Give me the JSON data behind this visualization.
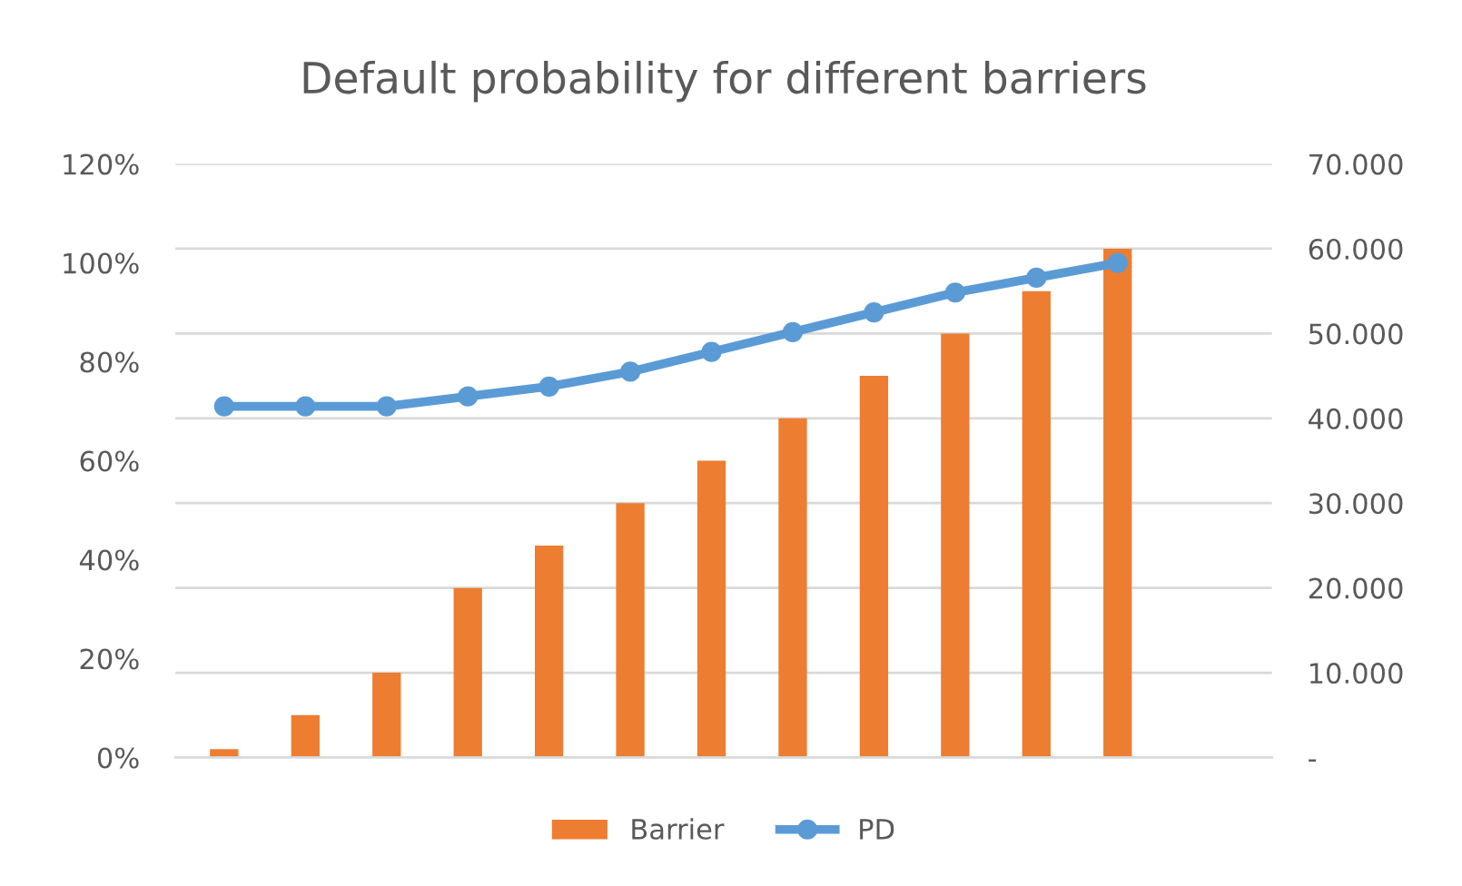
{
  "chart_data": {
    "type": "bar",
    "title": "Default probability for different barriers",
    "categories": [
      null,
      null,
      null,
      null,
      null,
      null,
      null,
      null,
      null,
      null,
      null,
      null
    ],
    "series": [
      {
        "name": "Barrier",
        "axis": "y2",
        "color": "#ed7d31",
        "values": [
          1000,
          5000,
          10000,
          20000,
          25000,
          30000,
          35000,
          40000,
          45000,
          50000,
          55000,
          60000
        ]
      },
      {
        "name": "PD",
        "type": "line",
        "axis": "y",
        "color": "#5b9bd5",
        "values": [
          71,
          71,
          71,
          73,
          75,
          78,
          82,
          86,
          90,
          94,
          97,
          100
        ]
      }
    ],
    "ylim": [
      0,
      120
    ],
    "yticks": [
      {
        "value": 0,
        "label": "0%"
      },
      {
        "value": 20,
        "label": "20%"
      },
      {
        "value": 40,
        "label": "40%"
      },
      {
        "value": 60,
        "label": "60%"
      },
      {
        "value": 80,
        "label": "80%"
      },
      {
        "value": 100,
        "label": "100%"
      },
      {
        "value": 120,
        "label": "120%"
      }
    ],
    "y2lim": [
      0,
      70000
    ],
    "y2ticks": [
      {
        "value": 0,
        "label": "-"
      },
      {
        "value": 10000,
        "label": "10.000"
      },
      {
        "value": 20000,
        "label": "20.000"
      },
      {
        "value": 30000,
        "label": "30.000"
      },
      {
        "value": 40000,
        "label": "40.000"
      },
      {
        "value": 50000,
        "label": "50.000"
      },
      {
        "value": 60000,
        "label": "60.000"
      },
      {
        "value": 70000,
        "label": "70.000"
      }
    ],
    "grid": "y2",
    "legend": "bottom",
    "marker": "circle",
    "line_style": "solid"
  }
}
